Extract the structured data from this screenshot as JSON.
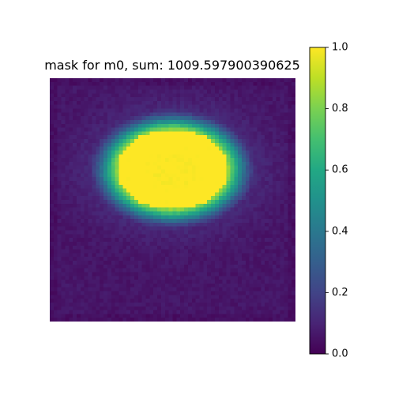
{
  "chart_data": {
    "type": "heatmap",
    "title": "mask for m0, sum: 1009.597900390625",
    "xlabel": "",
    "ylabel": "",
    "axes_visible": false,
    "grid": false,
    "colormap": "viridis",
    "colorbar": {
      "vmin": 0.0,
      "vmax": 1.0,
      "ticks": [
        0.0,
        0.2,
        0.4,
        0.6,
        0.8,
        1.0
      ],
      "tick_labels": [
        "0.0",
        "0.2",
        "0.4",
        "0.6",
        "0.8",
        "1.0"
      ],
      "placement": "right"
    },
    "grid_shape": [
      64,
      64
    ],
    "blob": {
      "center": [
        31.5,
        23.5
      ],
      "radius": [
        14.5,
        10.5
      ],
      "plateau_value": 1.0,
      "background_value": 0.06,
      "edge_softness": 5.5
    },
    "colors": {
      "low": "#440154",
      "mid": "#21918c",
      "high": "#fde725"
    }
  }
}
